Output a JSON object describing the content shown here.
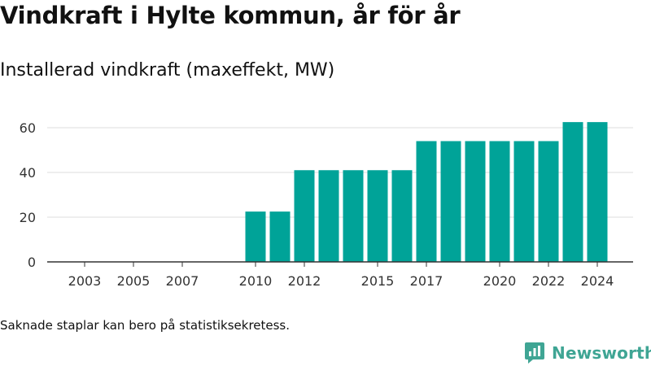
{
  "title": "Vindkraft i Hylte kommun, år för år",
  "subtitle": "Installerad vindkraft (maxeffekt, MW)",
  "footnote": "Saknade staplar kan bero på statistiksekretess.",
  "brand": {
    "name": "Newsworthy",
    "icon": "newsworthy-logo-icon",
    "color": "#3fa594"
  },
  "colors": {
    "bar": "#00a398",
    "grid": "#dddddd",
    "axis": "#333333",
    "text": "#333333"
  },
  "chart_data": {
    "type": "bar",
    "title": "Installerad vindkraft (maxeffekt, MW)",
    "xlabel": "",
    "ylabel": "",
    "categories": [
      "2003",
      "2004",
      "2005",
      "2006",
      "2007",
      "2008",
      "2009",
      "2010",
      "2011",
      "2012",
      "2013",
      "2014",
      "2015",
      "2016",
      "2017",
      "2018",
      "2019",
      "2020",
      "2021",
      "2022",
      "2023",
      "2024"
    ],
    "x_tick_labels": [
      "2003",
      "2005",
      "2007",
      "2010",
      "2012",
      "2015",
      "2017",
      "2020",
      "2022",
      "2024"
    ],
    "values": [
      null,
      null,
      null,
      null,
      null,
      null,
      null,
      22.5,
      22.5,
      41,
      41,
      41,
      41,
      41,
      54,
      54,
      54,
      54,
      54,
      54,
      62.5,
      62.5
    ],
    "y_ticks": [
      0,
      20,
      40,
      60
    ],
    "ylim": [
      0,
      66
    ],
    "grid": true,
    "legend": "none"
  }
}
